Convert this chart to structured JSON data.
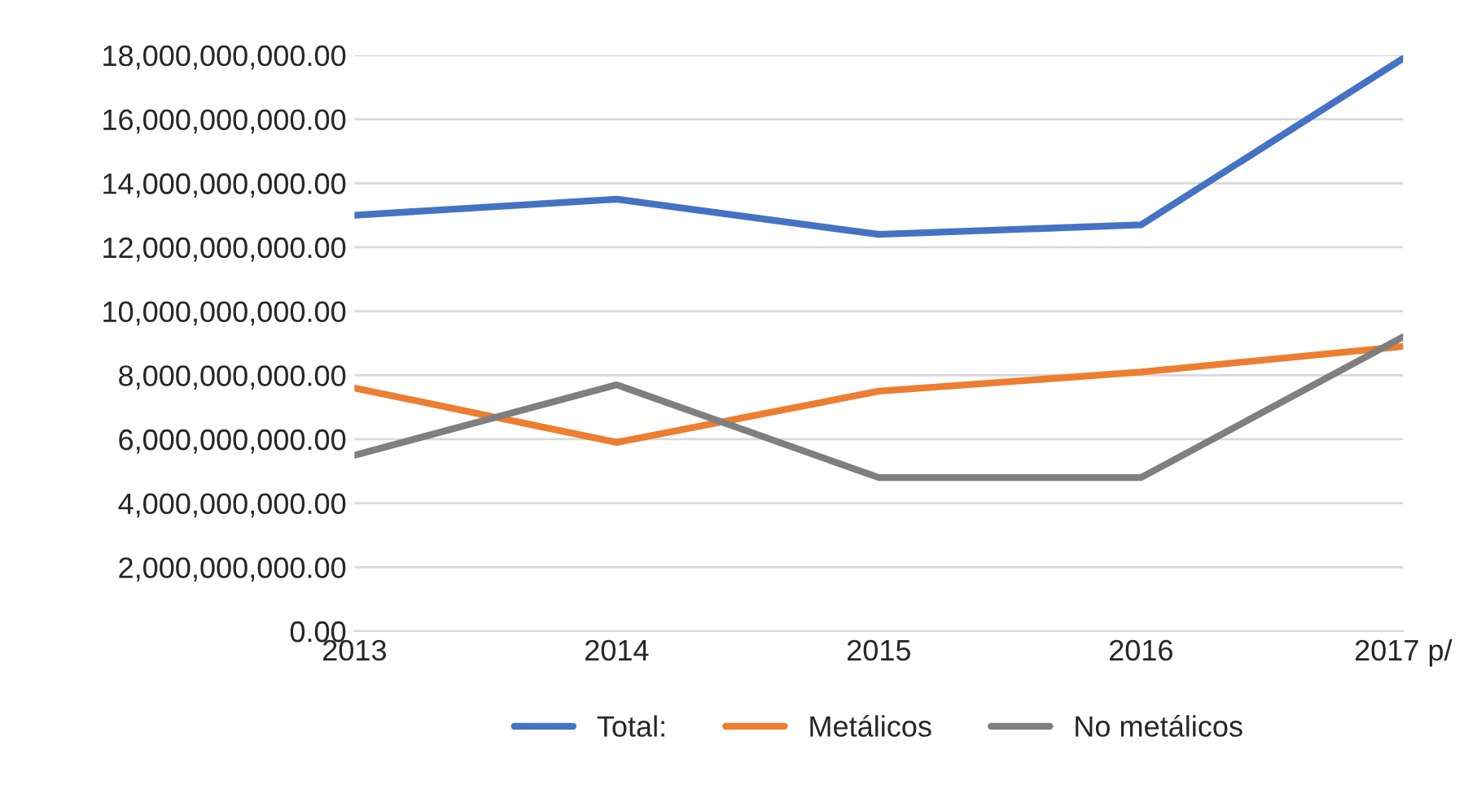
{
  "chart_data": {
    "type": "line",
    "categories": [
      "2013",
      "2014",
      "2015",
      "2016",
      "2017 p/"
    ],
    "series": [
      {
        "name": "Total:",
        "color": "#4472c4",
        "values": [
          13000000000.0,
          13500000000.0,
          12400000000.0,
          12700000000.0,
          17900000000.0
        ]
      },
      {
        "name": "Metálicos",
        "color": "#ed7d31",
        "values": [
          7600000000.0,
          5900000000.0,
          7500000000.0,
          8100000000.0,
          8900000000.0
        ]
      },
      {
        "name": "No metálicos",
        "color": "#7f7f7f",
        "values": [
          5500000000.0,
          7700000000.0,
          4800000000.0,
          4800000000.0,
          9200000000.0
        ]
      }
    ],
    "ylim": [
      0,
      18000000000
    ],
    "yticks": [
      {
        "value": 0,
        "label": "0.00"
      },
      {
        "value": 2000000000,
        "label": "2,000,000,000.00"
      },
      {
        "value": 4000000000,
        "label": "4,000,000,000.00"
      },
      {
        "value": 6000000000,
        "label": "6,000,000,000.00"
      },
      {
        "value": 8000000000,
        "label": "8,000,000,000.00"
      },
      {
        "value": 10000000000,
        "label": "10,000,000,000.00"
      },
      {
        "value": 12000000000,
        "label": "12,000,000,000.00"
      },
      {
        "value": 14000000000,
        "label": "14,000,000,000.00"
      },
      {
        "value": 16000000000,
        "label": "16,000,000,000.00"
      },
      {
        "value": 18000000000,
        "label": "18,000,000,000.00"
      }
    ],
    "grid": "y",
    "legend": "bottom",
    "marker": "none",
    "line_style": "solid"
  }
}
